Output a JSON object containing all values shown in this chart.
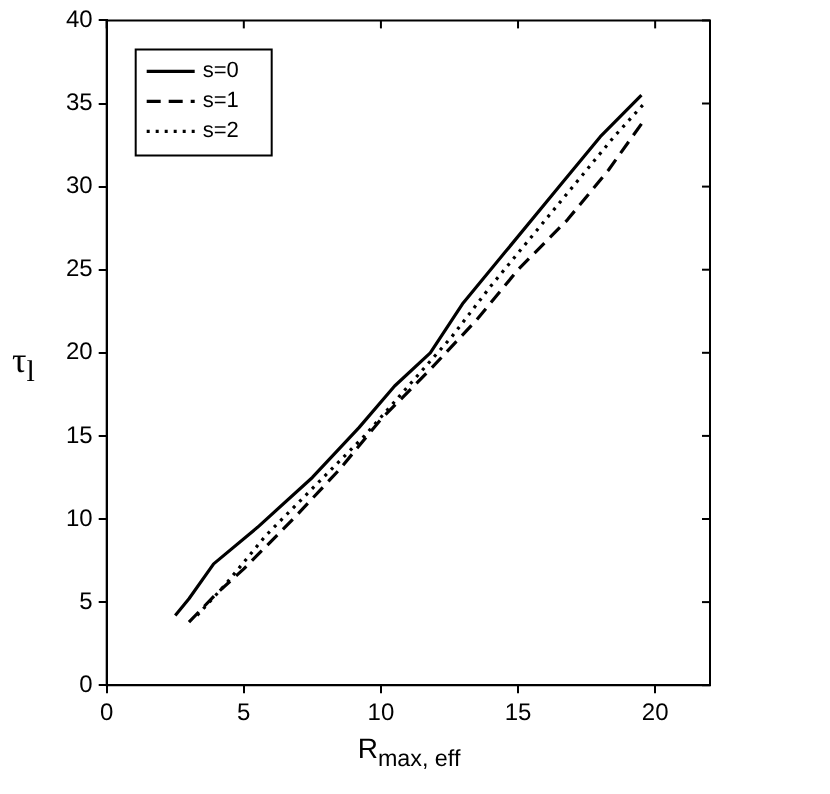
{
  "chart_data": {
    "type": "line",
    "xlabel": "R$_{max, eff}$",
    "ylabel": "τ$_{l}$",
    "xlim": [
      0,
      22
    ],
    "ylim": [
      0,
      40
    ],
    "xticks": [
      0,
      5,
      10,
      15,
      20
    ],
    "yticks": [
      0,
      5,
      10,
      15,
      20,
      25,
      30,
      35,
      40
    ],
    "grid": false,
    "legend": "top left",
    "marker": "none",
    "series": [
      {
        "name": "s=0",
        "color": "#000000",
        "line_style": "solid",
        "x": [
          2.5,
          3,
          3.9,
          5.5,
          7.5,
          9.2,
          10.5,
          11.8,
          13,
          14.5,
          16.5,
          18,
          19.5
        ],
        "values": [
          4.2,
          5.2,
          7.3,
          9.5,
          12.5,
          15.5,
          18,
          20,
          23,
          26,
          30,
          33,
          35.5
        ]
      },
      {
        "name": "s=1",
        "color": "#000000",
        "line_style": "dashed",
        "x": [
          3,
          4,
          5,
          6.8,
          8.5,
          10,
          11.8,
          13.5,
          15,
          16.8,
          18.3,
          19.6
        ],
        "values": [
          3.8,
          5.5,
          7,
          10,
          13,
          16,
          19,
          22,
          25,
          28,
          31,
          34
        ]
      },
      {
        "name": "s=2",
        "color": "#000000",
        "line_style": "dotted",
        "x": [
          3.3,
          4.3,
          5.8,
          7.6,
          9.4,
          11,
          12.6,
          14,
          15.5,
          17,
          18.5,
          19.6
        ],
        "values": [
          4.2,
          6,
          9,
          12,
          15,
          18,
          21,
          24,
          27,
          30,
          33,
          35
        ]
      }
    ]
  }
}
